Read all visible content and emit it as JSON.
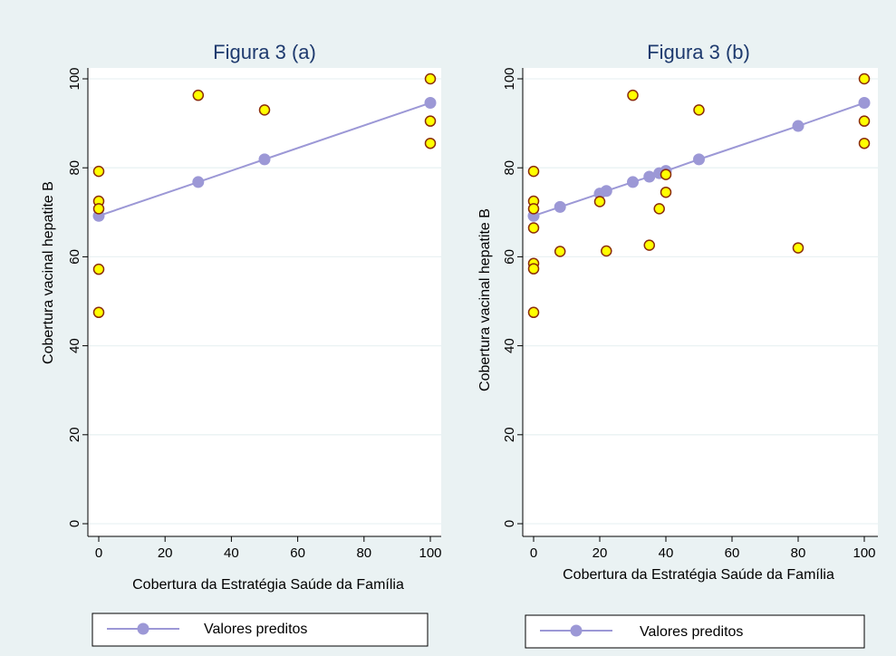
{
  "colors": {
    "background": "#eaf2f3",
    "plot_area": "#ffffff",
    "observed_fill": "#ffff00",
    "observed_stroke": "#8b2c08",
    "predicted": "#9c98d6",
    "title_text": "#1e3a6e"
  },
  "chart_data": [
    {
      "type": "scatter",
      "title": "Figura 3 (a)",
      "xlabel": "Cobertura da Estratégia Saúde da Família",
      "ylabel": "Cobertura vacinal hepatite B",
      "xlim": [
        0,
        100
      ],
      "ylim": [
        0,
        100
      ],
      "xticks": [
        "0",
        "20",
        "40",
        "60",
        "80",
        "100"
      ],
      "yticks": [
        "0",
        "20",
        "40",
        "60",
        "80",
        "100"
      ],
      "grid": true,
      "legend": {
        "position": "bottom",
        "entries": [
          "Valores preditos"
        ]
      },
      "series": [
        {
          "role": "observed",
          "marker": "circle",
          "points": [
            [
              0,
              79.2
            ],
            [
              0,
              72.5
            ],
            [
              0,
              70.8
            ],
            [
              0,
              57.2
            ],
            [
              0,
              47.5
            ],
            [
              30,
              96.3
            ],
            [
              50,
              93.0
            ],
            [
              100,
              100.0
            ],
            [
              100,
              90.5
            ],
            [
              100,
              85.5
            ]
          ]
        },
        {
          "name": "Valores preditos",
          "role": "predicted",
          "marker": "circle-line",
          "points": [
            [
              0,
              69.2
            ],
            [
              30,
              76.8
            ],
            [
              50,
              81.9
            ],
            [
              100,
              94.6
            ]
          ]
        }
      ]
    },
    {
      "type": "scatter",
      "title": "Figura 3 (b)",
      "xlabel": "Cobertura da Estratégia Saúde da Família",
      "ylabel": "Cobertura vacinal hepatite B",
      "xlim": [
        0,
        100
      ],
      "ylim": [
        0,
        100
      ],
      "xticks": [
        "0",
        "20",
        "40",
        "60",
        "80",
        "100"
      ],
      "yticks": [
        "0",
        "20",
        "40",
        "60",
        "80",
        "100"
      ],
      "grid": true,
      "legend": {
        "position": "bottom",
        "entries": [
          "Valores preditos"
        ]
      },
      "series": [
        {
          "role": "observed",
          "marker": "circle",
          "points": [
            [
              0,
              79.2
            ],
            [
              0,
              72.5
            ],
            [
              0,
              70.8
            ],
            [
              0,
              66.5
            ],
            [
              0,
              58.5
            ],
            [
              0,
              57.3
            ],
            [
              0,
              47.5
            ],
            [
              8,
              61.2
            ],
            [
              20,
              72.4
            ],
            [
              22,
              61.3
            ],
            [
              30,
              96.3
            ],
            [
              35,
              62.6
            ],
            [
              38,
              70.8
            ],
            [
              40,
              78.5
            ],
            [
              40,
              74.5
            ],
            [
              50,
              93.0
            ],
            [
              80,
              62.0
            ],
            [
              100,
              100.0
            ],
            [
              100,
              90.5
            ],
            [
              100,
              85.5
            ]
          ]
        },
        {
          "name": "Valores preditos",
          "role": "predicted",
          "marker": "circle-line",
          "points": [
            [
              0,
              69.2
            ],
            [
              8,
              71.2
            ],
            [
              20,
              74.2
            ],
            [
              22,
              74.8
            ],
            [
              30,
              76.8
            ],
            [
              35,
              78.0
            ],
            [
              38,
              78.8
            ],
            [
              40,
              79.3
            ],
            [
              50,
              81.9
            ],
            [
              80,
              89.4
            ],
            [
              100,
              94.6
            ]
          ]
        }
      ]
    }
  ]
}
